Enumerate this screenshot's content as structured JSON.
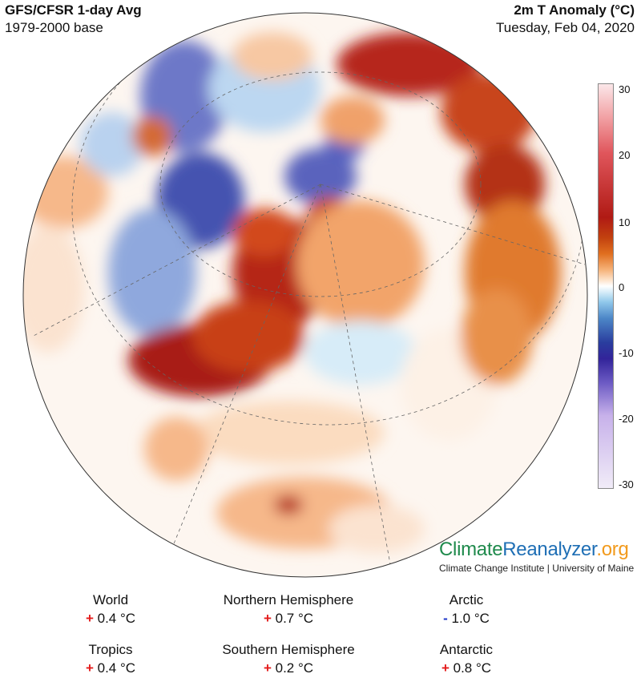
{
  "header": {
    "title_left": "GFS/CFSR 1-day Avg",
    "subtitle_left": "1979-2000 base",
    "title_right": "2m T Anomaly (°C)",
    "date": "Tuesday, Feb 04, 2020"
  },
  "colorbar": {
    "ticks": [
      "30",
      "20",
      "10",
      "0",
      "-10",
      "-20",
      "-30"
    ],
    "range": [
      -30,
      30
    ]
  },
  "branding": {
    "logo_part1": "Climate",
    "logo_part2": "Reanalyzer",
    "logo_part3": ".org",
    "credit": "Climate Change Institute | University of Maine",
    "colors": {
      "green": "#1f8a4c",
      "blue": "#1f6fb5",
      "orange": "#f29a1c"
    }
  },
  "stats": [
    {
      "name": "World",
      "sign": "+",
      "value": "0.4 °C"
    },
    {
      "name": "Northern Hemisphere",
      "sign": "+",
      "value": "0.7 °C"
    },
    {
      "name": "Arctic",
      "sign": "-",
      "value": "1.0 °C"
    },
    {
      "name": "Tropics",
      "sign": "+",
      "value": "0.4 °C"
    },
    {
      "name": "Southern Hemisphere",
      "sign": "+",
      "value": "0.2 °C"
    },
    {
      "name": "Antarctic",
      "sign": "+",
      "value": "0.8 °C"
    }
  ]
}
